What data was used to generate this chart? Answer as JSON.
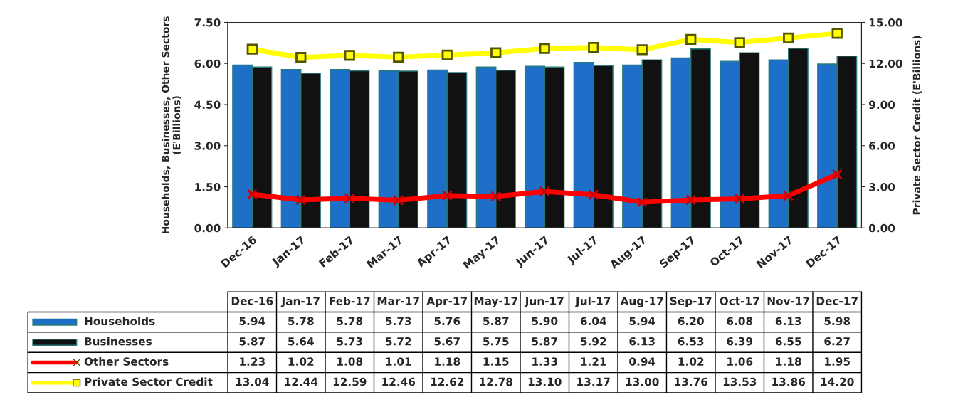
{
  "chart_data": {
    "type": "bar",
    "ylabel": "Households, Businesses, Other Sectors\n(E'Billions)",
    "y2label": "Private Sector Credit (E'Billions)",
    "categories": [
      "Dec-16",
      "Jan-17",
      "Feb-17",
      "Mar-17",
      "Apr-17",
      "May-17",
      "Jun-17",
      "Jul-17",
      "Aug-17",
      "Sep-17",
      "Oct-17",
      "Nov-17",
      "Dec-17"
    ],
    "series": [
      {
        "name": "Households",
        "color": "#1e6fc8",
        "values": [
          5.94,
          5.78,
          5.78,
          5.73,
          5.76,
          5.87,
          5.9,
          6.04,
          5.94,
          6.2,
          6.08,
          6.13,
          5.98
        ],
        "value_labels": [
          "5.94",
          "5.78",
          "5.78",
          "5.73",
          "5.76",
          "5.87",
          "5.90",
          "6.04",
          "5.94",
          "6.20",
          "6.08",
          "6.13",
          "5.98"
        ]
      },
      {
        "name": "Businesses",
        "color": "#111111",
        "values": [
          5.87,
          5.64,
          5.73,
          5.72,
          5.67,
          5.75,
          5.87,
          5.92,
          6.13,
          6.53,
          6.39,
          6.55,
          6.27
        ],
        "value_labels": [
          "5.87",
          "5.64",
          "5.73",
          "5.72",
          "5.67",
          "5.75",
          "5.87",
          "5.92",
          "6.13",
          "6.53",
          "6.39",
          "6.55",
          "6.27"
        ]
      },
      {
        "name": "Other Sectors",
        "type": "line",
        "color": "#ff0000",
        "marker": "cross",
        "values": [
          1.23,
          1.02,
          1.08,
          1.01,
          1.18,
          1.15,
          1.33,
          1.21,
          0.94,
          1.02,
          1.06,
          1.18,
          1.95
        ],
        "value_labels": [
          "1.23",
          "1.02",
          "1.08",
          "1.01",
          "1.18",
          "1.15",
          "1.33",
          "1.21",
          "0.94",
          "1.02",
          "1.06",
          "1.18",
          "1.95"
        ]
      },
      {
        "name": "Private Sector Credit",
        "type": "line",
        "axis": "y2",
        "color": "#ffff00",
        "marker": "square",
        "values": [
          13.04,
          12.44,
          12.59,
          12.46,
          12.62,
          12.78,
          13.1,
          13.17,
          13.0,
          13.76,
          13.53,
          13.86,
          14.2
        ],
        "value_labels": [
          "13.04",
          "12.44",
          "12.59",
          "12.46",
          "12.62",
          "12.78",
          "13.10",
          "13.17",
          "13.00",
          "13.76",
          "13.53",
          "13.86",
          "14.20"
        ]
      }
    ],
    "ylim": [
      0,
      7.5
    ],
    "yticks": [
      {
        "value": 0,
        "label": "0.00"
      },
      {
        "value": 1.5,
        "label": "1.50"
      },
      {
        "value": 3,
        "label": "3.00"
      },
      {
        "value": 4.5,
        "label": "4.50"
      },
      {
        "value": 6,
        "label": "6.00"
      },
      {
        "value": 7.5,
        "label": "7.50"
      }
    ],
    "y2lim": [
      0,
      15
    ],
    "y2ticks": [
      {
        "value": 0,
        "label": "0.00"
      },
      {
        "value": 3,
        "label": "3.00"
      },
      {
        "value": 6,
        "label": "6.00"
      },
      {
        "value": 9,
        "label": "9.00"
      },
      {
        "value": 12,
        "label": "12.00"
      },
      {
        "value": 15,
        "label": "15.00"
      }
    ],
    "grid": false,
    "legend": "bottom left"
  }
}
